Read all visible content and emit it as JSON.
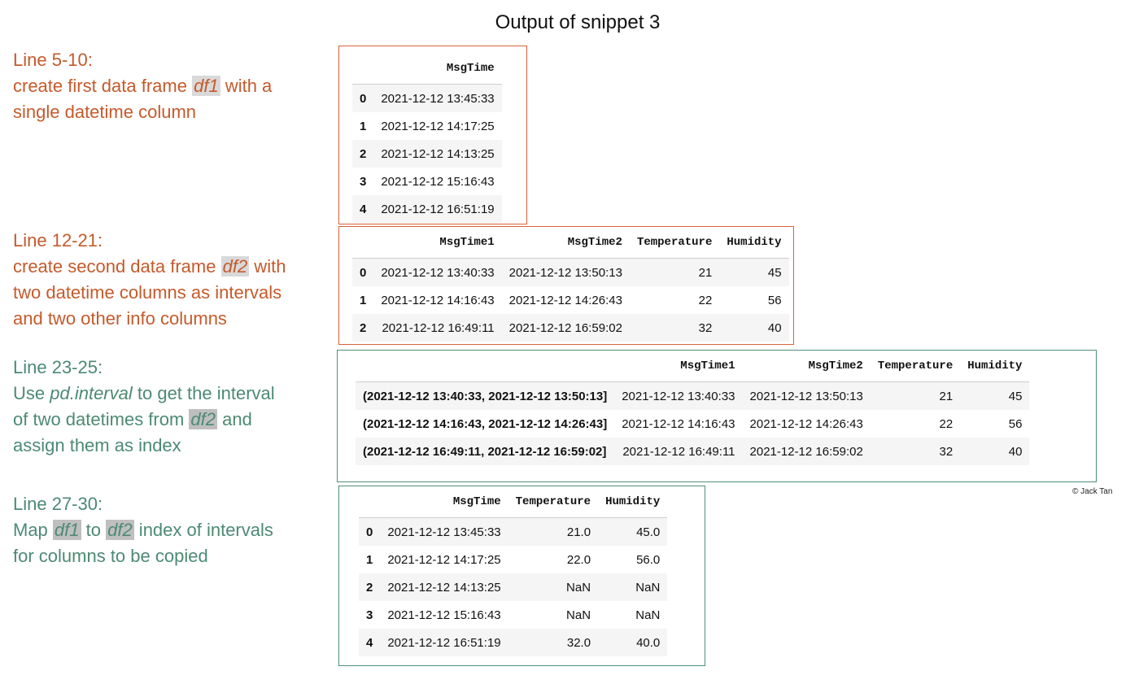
{
  "title": "Output of snippet 3",
  "credit": "© Jack Tan",
  "notes": {
    "n1": {
      "line": "Line 5-10:",
      "pre": "create first data frame ",
      "hl": "df1",
      "post": " with a",
      "rest": "single datetime column"
    },
    "n2": {
      "line": "Line 12-21:",
      "pre": "create second data frame ",
      "hl": "df2",
      "post": " with",
      "rest1": "two datetime columns as intervals",
      "rest2": "and two other info columns"
    },
    "n3": {
      "line": "Line 23-25:",
      "pre": "Use ",
      "it": "pd.interval",
      "post": " to get the interval",
      "pre2": "of two datetimes from ",
      "hl": "df2",
      "post2": " and",
      "rest": "assign them as index"
    },
    "n4": {
      "line": "Line 27-30:",
      "pre": "Map ",
      "hl1": "df1",
      "mid": " to ",
      "hl2": "df2",
      "post": " index of intervals",
      "rest": "for columns to be copied"
    }
  },
  "tables": {
    "df1": {
      "columns": [
        "",
        "MsgTime"
      ],
      "rows": [
        [
          "0",
          "2021-12-12 13:45:33"
        ],
        [
          "1",
          "2021-12-12 14:17:25"
        ],
        [
          "2",
          "2021-12-12 14:13:25"
        ],
        [
          "3",
          "2021-12-12 15:16:43"
        ],
        [
          "4",
          "2021-12-12 16:51:19"
        ]
      ]
    },
    "df2": {
      "columns": [
        "",
        "MsgTime1",
        "MsgTime2",
        "Temperature",
        "Humidity"
      ],
      "rows": [
        [
          "0",
          "2021-12-12 13:40:33",
          "2021-12-12 13:50:13",
          "21",
          "45"
        ],
        [
          "1",
          "2021-12-12 14:16:43",
          "2021-12-12 14:26:43",
          "22",
          "56"
        ],
        [
          "2",
          "2021-12-12 16:49:11",
          "2021-12-12 16:59:02",
          "32",
          "40"
        ]
      ]
    },
    "df2_interval": {
      "columns": [
        "",
        "MsgTime1",
        "MsgTime2",
        "Temperature",
        "Humidity"
      ],
      "rows": [
        [
          "(2021-12-12 13:40:33, 2021-12-12 13:50:13]",
          "2021-12-12 13:40:33",
          "2021-12-12 13:50:13",
          "21",
          "45"
        ],
        [
          "(2021-12-12 14:16:43, 2021-12-12 14:26:43]",
          "2021-12-12 14:16:43",
          "2021-12-12 14:26:43",
          "22",
          "56"
        ],
        [
          "(2021-12-12 16:49:11, 2021-12-12 16:59:02]",
          "2021-12-12 16:49:11",
          "2021-12-12 16:59:02",
          "32",
          "40"
        ]
      ]
    },
    "df1_mapped": {
      "columns": [
        "",
        "MsgTime",
        "Temperature",
        "Humidity"
      ],
      "rows": [
        [
          "0",
          "2021-12-12 13:45:33",
          "21.0",
          "45.0"
        ],
        [
          "1",
          "2021-12-12 14:17:25",
          "22.0",
          "56.0"
        ],
        [
          "2",
          "2021-12-12 14:13:25",
          "NaN",
          "NaN"
        ],
        [
          "3",
          "2021-12-12 15:16:43",
          "NaN",
          "NaN"
        ],
        [
          "4",
          "2021-12-12 16:51:19",
          "32.0",
          "40.0"
        ]
      ]
    }
  }
}
